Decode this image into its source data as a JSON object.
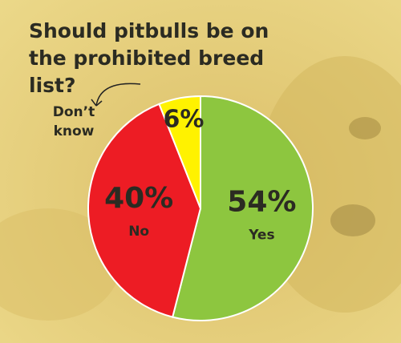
{
  "chart_data": {
    "type": "pie",
    "title": "Should pitbulls be on the prohibited breed list?",
    "categories": [
      "Yes",
      "No",
      "Don’t know"
    ],
    "values": [
      54,
      40,
      6
    ],
    "value_labels": [
      "54%",
      "40%",
      "6%"
    ],
    "colors": [
      "#8dc63f",
      "#ed1c24",
      "#fff200"
    ]
  }
}
